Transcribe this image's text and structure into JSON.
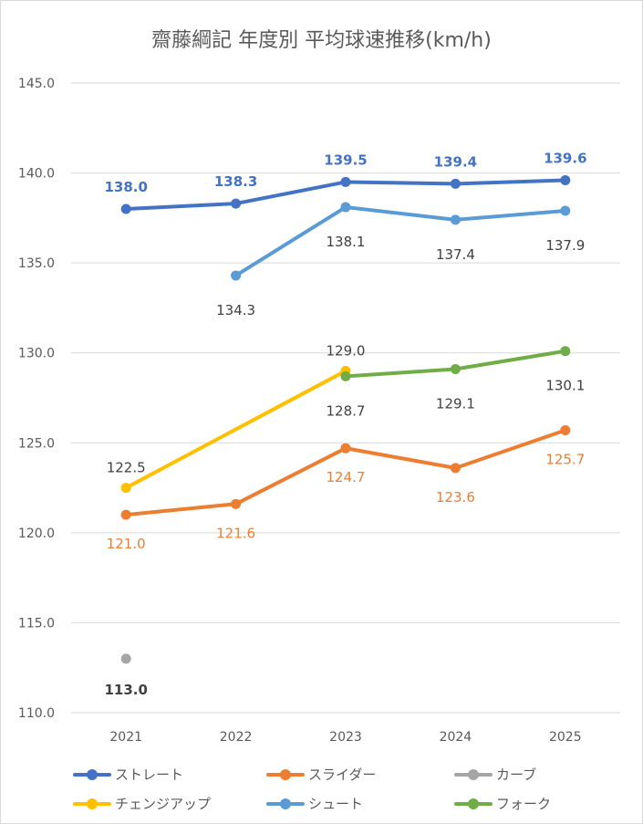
{
  "chart_data": {
    "type": "line",
    "title": "齋藤綱記 年度別 平均球速推移(km/h)",
    "categories": [
      "2021",
      "2022",
      "2023",
      "2024",
      "2025"
    ],
    "ylim": [
      110,
      145
    ],
    "yticks": [
      "110.0",
      "115.0",
      "120.0",
      "125.0",
      "130.0",
      "135.0",
      "140.0",
      "145.0"
    ],
    "grid": true,
    "legend_position": "bottom",
    "series": [
      {
        "name": "ストレート",
        "color": "#4472C4",
        "values": [
          138.0,
          138.3,
          139.5,
          139.4,
          139.6
        ]
      },
      {
        "name": "スライダー",
        "color": "#ED7D31",
        "values": [
          121.0,
          121.6,
          124.7,
          123.6,
          125.7
        ]
      },
      {
        "name": "カーブ",
        "color": "#A5A5A5",
        "values": [
          113.0,
          null,
          null,
          null,
          null
        ]
      },
      {
        "name": "チェンジアップ",
        "color": "#FFC000",
        "values": [
          122.5,
          null,
          129.0,
          null,
          null
        ]
      },
      {
        "name": "シュート",
        "color": "#5B9BD5",
        "values": [
          null,
          134.3,
          138.1,
          137.4,
          137.9
        ]
      },
      {
        "name": "フォーク",
        "color": "#70AD47",
        "values": [
          null,
          null,
          128.7,
          129.1,
          130.1
        ]
      }
    ]
  }
}
